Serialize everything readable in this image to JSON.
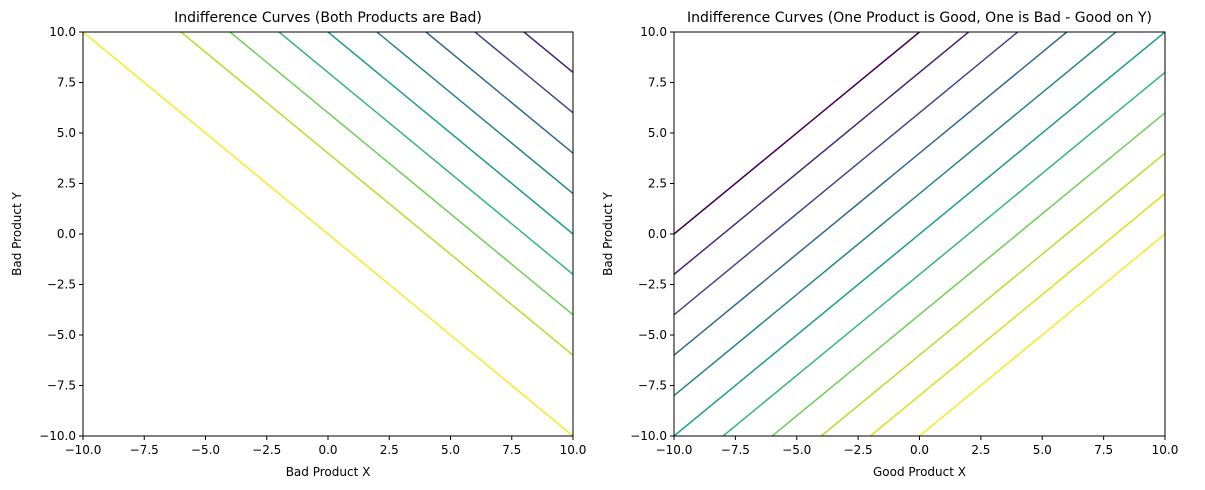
{
  "chart_data": [
    {
      "type": "line",
      "title": "Indifference Curves (Both Products are Bad)",
      "xlabel": "Bad Product X",
      "ylabel": "Bad Product Y",
      "xlim": [
        -10,
        10
      ],
      "ylim": [
        -10,
        10
      ],
      "xticks": [
        -10,
        -7.5,
        -5,
        -2.5,
        0,
        2.5,
        5,
        7.5,
        10
      ],
      "yticks": [
        -10,
        -7.5,
        -5,
        -2.5,
        0,
        2.5,
        5,
        7.5,
        10
      ],
      "xtick_labels": [
        "−10.0",
        "−7.5",
        "−5.0",
        "−2.5",
        "0.0",
        "2.5",
        "5.0",
        "7.5",
        "10.0"
      ],
      "ytick_labels": [
        "−10.0",
        "−7.5",
        "−5.0",
        "−2.5",
        "0.0",
        "2.5",
        "5.0",
        "7.5",
        "10.0"
      ],
      "grid": false,
      "series": [
        {
          "color": "#440154",
          "x": [
            10,
            10
          ],
          "y": [
            10,
            10
          ]
        },
        {
          "color": "#482878",
          "x": [
            8,
            10
          ],
          "y": [
            10,
            8
          ]
        },
        {
          "color": "#3e4989",
          "x": [
            6,
            10
          ],
          "y": [
            10,
            6
          ]
        },
        {
          "color": "#31688e",
          "x": [
            4,
            10
          ],
          "y": [
            10,
            4
          ]
        },
        {
          "color": "#26828e",
          "x": [
            2,
            10
          ],
          "y": [
            10,
            2
          ]
        },
        {
          "color": "#1f9e89",
          "x": [
            0,
            10
          ],
          "y": [
            10,
            0
          ]
        },
        {
          "color": "#35b779",
          "x": [
            -2,
            10
          ],
          "y": [
            10,
            -2
          ]
        },
        {
          "color": "#6ece58",
          "x": [
            -4,
            10
          ],
          "y": [
            10,
            -4
          ]
        },
        {
          "color": "#b5de2b",
          "x": [
            -6,
            10
          ],
          "y": [
            10,
            -6
          ]
        },
        {
          "color": "#fde725",
          "x": [
            -10,
            10
          ],
          "y": [
            10,
            -10
          ]
        }
      ]
    },
    {
      "type": "line",
      "title": "Indifference Curves (One Product is Good, One is Bad - Good on Y)",
      "xlabel": "Good Product X",
      "ylabel": "Bad Product Y",
      "xlim": [
        -10,
        10
      ],
      "ylim": [
        -10,
        10
      ],
      "xticks": [
        -10,
        -7.5,
        -5,
        -2.5,
        0,
        2.5,
        5,
        7.5,
        10
      ],
      "yticks": [
        -10,
        -7.5,
        -5,
        -2.5,
        0,
        2.5,
        5,
        7.5,
        10
      ],
      "xtick_labels": [
        "−10.0",
        "−7.5",
        "−5.0",
        "−2.5",
        "0.0",
        "2.5",
        "5.0",
        "7.5",
        "10.0"
      ],
      "ytick_labels": [
        "−10.0",
        "−7.5",
        "−5.0",
        "−2.5",
        "0.0",
        "2.5",
        "5.0",
        "7.5",
        "10.0"
      ],
      "grid": false,
      "series": [
        {
          "color": "#440154",
          "x": [
            -10,
            0
          ],
          "y": [
            0,
            10
          ]
        },
        {
          "color": "#482878",
          "x": [
            -10,
            2
          ],
          "y": [
            -2,
            10
          ]
        },
        {
          "color": "#3e4989",
          "x": [
            -10,
            4
          ],
          "y": [
            -4,
            10
          ]
        },
        {
          "color": "#31688e",
          "x": [
            -10,
            6
          ],
          "y": [
            -6,
            10
          ]
        },
        {
          "color": "#26828e",
          "x": [
            -10,
            8
          ],
          "y": [
            -8,
            10
          ]
        },
        {
          "color": "#1f9e89",
          "x": [
            -10,
            10
          ],
          "y": [
            -10,
            10
          ]
        },
        {
          "color": "#35b779",
          "x": [
            -8,
            10
          ],
          "y": [
            -10,
            8
          ]
        },
        {
          "color": "#6ece58",
          "x": [
            -6,
            10
          ],
          "y": [
            -10,
            6
          ]
        },
        {
          "color": "#b5de2b",
          "x": [
            -4,
            10
          ],
          "y": [
            -10,
            4
          ]
        },
        {
          "color": "#d8e219",
          "x": [
            -2,
            10
          ],
          "y": [
            -10,
            2
          ]
        },
        {
          "color": "#fde725",
          "x": [
            0,
            10
          ],
          "y": [
            -10,
            0
          ]
        }
      ]
    }
  ]
}
